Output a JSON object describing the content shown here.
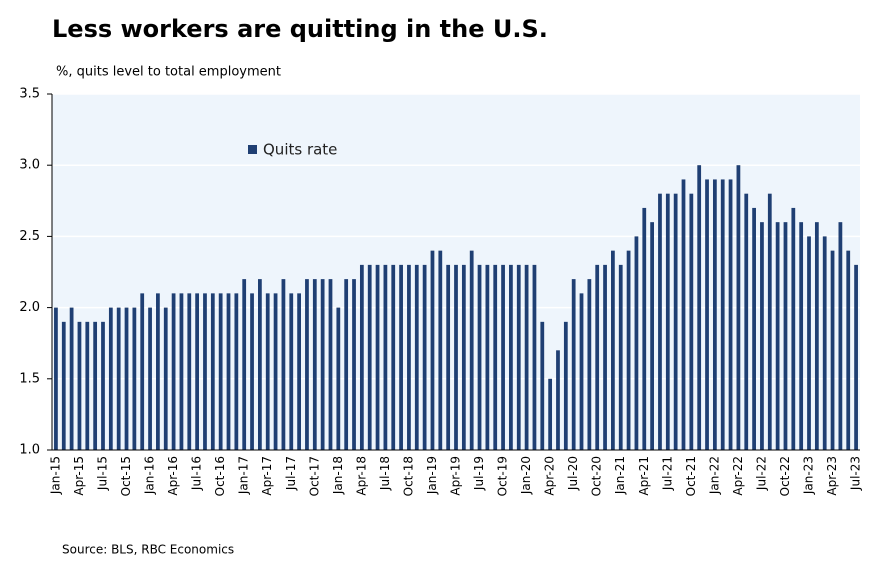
{
  "chart_data": {
    "type": "bar",
    "title": "Less workers are quitting in the U.S.",
    "subtitle": "%, quits level to total employment",
    "source": "Source: BLS, RBC Economics",
    "categories": [
      "Jan-15",
      null,
      null,
      "Apr-15",
      null,
      null,
      "Jul-15",
      null,
      null,
      "Oct-15",
      null,
      null,
      "Jan-16",
      null,
      null,
      "Apr-16",
      null,
      null,
      "Jul-16",
      null,
      null,
      "Oct-16",
      null,
      null,
      "Jan-17",
      null,
      null,
      "Apr-17",
      null,
      null,
      "Jul-17",
      null,
      null,
      "Oct-17",
      null,
      null,
      "Jan-18",
      null,
      null,
      "Apr-18",
      null,
      null,
      "Jul-18",
      null,
      null,
      "Oct-18",
      null,
      null,
      "Jan-19",
      null,
      null,
      "Apr-19",
      null,
      null,
      "Jul-19",
      null,
      null,
      "Oct-19",
      null,
      null,
      "Jan-20",
      null,
      null,
      "Apr-20",
      null,
      null,
      "Jul-20",
      null,
      null,
      "Oct-20",
      null,
      null,
      "Jan-21",
      null,
      null,
      "Apr-21",
      null,
      null,
      "Jul-21",
      null,
      null,
      "Oct-21",
      null,
      null,
      "Jan-22",
      null,
      null,
      "Apr-22",
      null,
      null,
      "Jul-22",
      null,
      null,
      "Oct-22",
      null,
      null,
      "Jan-23",
      null,
      null,
      "Apr-23",
      null,
      null,
      "Jul-23"
    ],
    "series": [
      {
        "name": "Quits rate",
        "color": "#1f3f73",
        "values": [
          2.0,
          1.9,
          2.0,
          1.9,
          1.9,
          1.9,
          1.9,
          2.0,
          2.0,
          2.0,
          2.0,
          2.1,
          2.0,
          2.1,
          2.0,
          2.1,
          2.1,
          2.1,
          2.1,
          2.1,
          2.1,
          2.1,
          2.1,
          2.1,
          2.2,
          2.1,
          2.2,
          2.1,
          2.1,
          2.2,
          2.1,
          2.1,
          2.2,
          2.2,
          2.2,
          2.2,
          2.0,
          2.2,
          2.2,
          2.3,
          2.3,
          2.3,
          2.3,
          2.3,
          2.3,
          2.3,
          2.3,
          2.3,
          2.4,
          2.4,
          2.3,
          2.3,
          2.3,
          2.4,
          2.3,
          2.3,
          2.3,
          2.3,
          2.3,
          2.3,
          2.3,
          2.3,
          1.9,
          1.5,
          1.7,
          1.9,
          2.2,
          2.1,
          2.2,
          2.3,
          2.3,
          2.4,
          2.3,
          2.4,
          2.5,
          2.7,
          2.6,
          2.8,
          2.8,
          2.8,
          2.9,
          2.8,
          3.0,
          2.9,
          2.9,
          2.9,
          2.9,
          3.0,
          2.8,
          2.7,
          2.6,
          2.8,
          2.6,
          2.6,
          2.7,
          2.6,
          2.5,
          2.6,
          2.5,
          2.4,
          2.6,
          2.4,
          2.3
        ]
      }
    ],
    "ylim": [
      1.0,
      3.5
    ],
    "yticks": [
      {
        "value": 1,
        "label": "1.0"
      },
      1.5,
      {
        "value": 2,
        "label": "2.0"
      },
      2.5,
      {
        "value": 3,
        "label": "3.0"
      },
      3.5
    ],
    "grid": true,
    "legend": "upper left"
  }
}
